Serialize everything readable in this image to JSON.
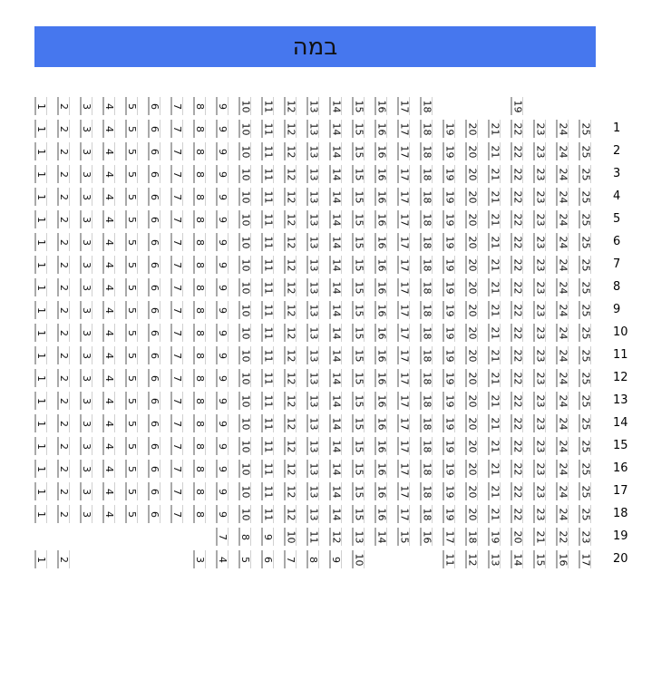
{
  "stage": {
    "label": "במה"
  },
  "rows": [
    {
      "label": "",
      "seats": [
        1,
        2,
        3,
        4,
        5,
        6,
        7,
        8,
        9,
        10,
        11,
        12,
        13,
        14,
        15,
        16,
        17,
        18,
        null,
        null,
        null,
        19
      ]
    },
    {
      "label": "1",
      "seats": [
        1,
        2,
        3,
        4,
        5,
        6,
        7,
        8,
        9,
        10,
        11,
        12,
        13,
        14,
        15,
        16,
        17,
        18,
        19,
        20,
        21,
        22,
        23,
        24,
        25
      ]
    },
    {
      "label": "2",
      "seats": [
        1,
        2,
        3,
        4,
        5,
        6,
        7,
        8,
        9,
        10,
        11,
        12,
        13,
        14,
        15,
        16,
        17,
        18,
        19,
        20,
        21,
        22,
        23,
        24,
        25
      ]
    },
    {
      "label": "3",
      "seats": [
        1,
        2,
        3,
        4,
        5,
        6,
        7,
        8,
        9,
        10,
        11,
        12,
        13,
        14,
        15,
        16,
        17,
        18,
        19,
        20,
        21,
        22,
        23,
        24,
        25
      ]
    },
    {
      "label": "4",
      "seats": [
        1,
        2,
        3,
        4,
        5,
        6,
        7,
        8,
        9,
        10,
        11,
        12,
        13,
        14,
        15,
        16,
        17,
        18,
        19,
        20,
        21,
        22,
        23,
        24,
        25
      ]
    },
    {
      "label": "5",
      "seats": [
        1,
        2,
        3,
        4,
        5,
        6,
        7,
        8,
        9,
        10,
        11,
        12,
        13,
        14,
        15,
        16,
        17,
        18,
        19,
        20,
        21,
        22,
        23,
        24,
        25
      ]
    },
    {
      "label": "6",
      "seats": [
        1,
        2,
        3,
        4,
        5,
        6,
        7,
        8,
        9,
        10,
        11,
        12,
        13,
        14,
        15,
        16,
        17,
        18,
        19,
        20,
        21,
        22,
        23,
        24,
        25
      ]
    },
    {
      "label": "7",
      "seats": [
        1,
        2,
        3,
        4,
        5,
        6,
        7,
        8,
        9,
        10,
        11,
        12,
        13,
        14,
        15,
        16,
        17,
        18,
        19,
        20,
        21,
        22,
        23,
        24,
        25
      ]
    },
    {
      "label": "8",
      "seats": [
        1,
        2,
        3,
        4,
        5,
        6,
        7,
        8,
        9,
        10,
        11,
        12,
        13,
        14,
        15,
        16,
        17,
        18,
        19,
        20,
        21,
        22,
        23,
        24,
        25
      ]
    },
    {
      "label": "9",
      "seats": [
        1,
        2,
        3,
        4,
        5,
        6,
        7,
        8,
        9,
        10,
        11,
        12,
        13,
        14,
        15,
        16,
        17,
        18,
        19,
        20,
        21,
        22,
        23,
        24,
        25
      ]
    },
    {
      "label": "10",
      "seats": [
        1,
        2,
        3,
        4,
        5,
        6,
        7,
        8,
        9,
        10,
        11,
        12,
        13,
        14,
        15,
        16,
        17,
        18,
        19,
        20,
        21,
        22,
        23,
        24,
        25
      ]
    },
    {
      "label": "11",
      "seats": [
        1,
        2,
        3,
        4,
        5,
        6,
        7,
        8,
        9,
        10,
        11,
        12,
        13,
        14,
        15,
        16,
        17,
        18,
        19,
        20,
        21,
        22,
        23,
        24,
        25
      ]
    },
    {
      "label": "12",
      "seats": [
        1,
        2,
        3,
        4,
        5,
        6,
        7,
        8,
        9,
        10,
        11,
        12,
        13,
        14,
        15,
        16,
        17,
        18,
        19,
        20,
        21,
        22,
        23,
        24,
        25
      ]
    },
    {
      "label": "13",
      "seats": [
        1,
        2,
        3,
        4,
        5,
        6,
        7,
        8,
        9,
        10,
        11,
        12,
        13,
        14,
        15,
        16,
        17,
        18,
        19,
        20,
        21,
        22,
        23,
        24,
        25
      ]
    },
    {
      "label": "14",
      "seats": [
        1,
        2,
        3,
        4,
        5,
        6,
        7,
        8,
        9,
        10,
        11,
        12,
        13,
        14,
        15,
        16,
        17,
        18,
        19,
        20,
        21,
        22,
        23,
        24,
        25
      ]
    },
    {
      "label": "15",
      "seats": [
        1,
        2,
        3,
        4,
        5,
        6,
        7,
        8,
        9,
        10,
        11,
        12,
        13,
        14,
        15,
        16,
        17,
        18,
        19,
        20,
        21,
        22,
        23,
        24,
        25
      ]
    },
    {
      "label": "16",
      "seats": [
        1,
        2,
        3,
        4,
        5,
        6,
        7,
        8,
        9,
        10,
        11,
        12,
        13,
        14,
        15,
        16,
        17,
        18,
        19,
        20,
        21,
        22,
        23,
        24,
        25
      ]
    },
    {
      "label": "17",
      "seats": [
        1,
        2,
        3,
        4,
        5,
        6,
        7,
        8,
        9,
        10,
        11,
        12,
        13,
        14,
        15,
        16,
        17,
        18,
        19,
        20,
        21,
        22,
        23,
        24,
        25
      ]
    },
    {
      "label": "18",
      "seats": [
        1,
        2,
        3,
        4,
        5,
        6,
        7,
        8,
        9,
        10,
        11,
        12,
        13,
        14,
        15,
        16,
        17,
        18,
        19,
        20,
        21,
        22,
        23,
        24,
        25
      ]
    },
    {
      "label": "19",
      "seats": [
        null,
        null,
        null,
        null,
        null,
        null,
        null,
        null,
        7,
        8,
        9,
        10,
        11,
        12,
        13,
        14,
        15,
        16,
        17,
        18,
        19,
        20,
        21,
        22,
        23
      ]
    },
    {
      "label": "20",
      "seats": [
        1,
        2,
        null,
        null,
        null,
        null,
        null,
        3,
        4,
        5,
        6,
        7,
        8,
        9,
        10,
        null,
        null,
        null,
        11,
        12,
        13,
        14,
        15,
        16,
        17
      ]
    }
  ]
}
